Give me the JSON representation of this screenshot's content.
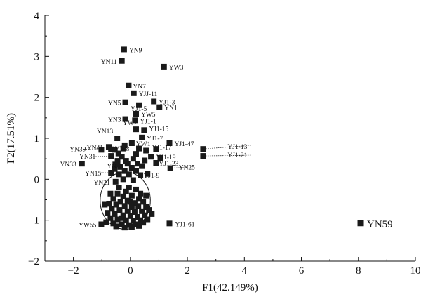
{
  "chart_data": {
    "type": "scatter",
    "xlabel": "F1(42.149%)",
    "ylabel": "F2(17.51%)",
    "xlim": [
      -3,
      10
    ],
    "ylim": [
      -2,
      4
    ],
    "xticks": [
      -2,
      0,
      2,
      4,
      6,
      8,
      10
    ],
    "yticks": [
      -2,
      -1,
      0,
      1,
      2,
      3,
      4
    ],
    "xtick_labels": [
      "−2",
      "0",
      "2",
      "4",
      "6",
      "8",
      "10"
    ],
    "ytick_labels": [
      "−2",
      "−1",
      "0",
      "1",
      "2",
      "3",
      "4"
    ],
    "grid": false,
    "legend": "none",
    "marker": "filled-square",
    "marker_color": "#1a1a1a",
    "cluster_ellipse": {
      "center": [
        -0.18,
        -0.52
      ],
      "radii": [
        0.88,
        0.7
      ]
    },
    "labeled_points": [
      {
        "label": "YN9",
        "x": -0.22,
        "y": 3.17
      },
      {
        "label": "YN11",
        "x": -0.3,
        "y": 2.89
      },
      {
        "label": "YW3",
        "x": 1.18,
        "y": 2.75
      },
      {
        "label": "YN7",
        "x": -0.06,
        "y": 2.29
      },
      {
        "label": "YJJ-11",
        "x": 0.12,
        "y": 2.1
      },
      {
        "label": "YJ1-3",
        "x": 0.82,
        "y": 1.9
      },
      {
        "label": "YN5",
        "x": -0.18,
        "y": 1.88
      },
      {
        "label": "YN1",
        "x": 1.02,
        "y": 1.76
      },
      {
        "label": "YJ1-5",
        "x": 0.3,
        "y": 1.81
      },
      {
        "label": "YW5",
        "x": 0.2,
        "y": 1.6
      },
      {
        "label": "YN3",
        "x": -0.18,
        "y": 1.47
      },
      {
        "label": "YJ1-1",
        "x": 0.16,
        "y": 1.44
      },
      {
        "label": "YW7",
        "x": 0.2,
        "y": 1.22
      },
      {
        "label": "YJ1-15",
        "x": 0.48,
        "y": 1.2
      },
      {
        "label": "YN13",
        "x": -0.46,
        "y": 1.0
      },
      {
        "label": "YJ1-7",
        "x": 0.4,
        "y": 1.02
      },
      {
        "label": "YN41",
        "x": -0.76,
        "y": 0.79
      },
      {
        "label": "YW8",
        "x": -0.2,
        "y": 0.83
      },
      {
        "label": "YJ1-47",
        "x": 1.37,
        "y": 0.88
      },
      {
        "label": "YW1",
        "x": 0.05,
        "y": 0.88
      },
      {
        "label": "YN39",
        "x": -1.02,
        "y": 0.72
      },
      {
        "label": "YJ1-17",
        "x": 0.9,
        "y": 0.74
      },
      {
        "label": "YJ1-13",
        "x": 2.55,
        "y": 0.74
      },
      {
        "label": "YN31",
        "x": -0.68,
        "y": 0.57
      },
      {
        "label": "YJ1-21",
        "x": 2.55,
        "y": 0.57
      },
      {
        "label": "YJ1-19",
        "x": 1.05,
        "y": 0.52
      },
      {
        "label": "YN33",
        "x": -1.7,
        "y": 0.38
      },
      {
        "label": "YN35",
        "x": -0.53,
        "y": 0.36
      },
      {
        "label": "YJ1-23",
        "x": 0.9,
        "y": 0.4
      },
      {
        "label": "YN15",
        "x": -0.68,
        "y": 0.16
      },
      {
        "label": "YN25",
        "x": 1.4,
        "y": 0.27
      },
      {
        "label": "YJ1-9",
        "x": 0.6,
        "y": 0.13
      },
      {
        "label": "YN21",
        "x": -0.52,
        "y": -0.06
      },
      {
        "label": "YJ1-61",
        "x": 1.37,
        "y": -1.08
      },
      {
        "label": "YW55",
        "x": -1.02,
        "y": -1.1
      },
      {
        "label": "YN59",
        "x": 8.08,
        "y": -1.07
      }
    ],
    "other_points": [
      [
        -0.68,
        0.73
      ],
      [
        -0.55,
        0.72
      ],
      [
        -0.42,
        0.63
      ],
      [
        -0.25,
        0.75
      ],
      [
        0.3,
        0.75
      ],
      [
        0.55,
        0.7
      ],
      [
        0.2,
        0.62
      ],
      [
        -0.3,
        0.55
      ],
      [
        0.1,
        0.5
      ],
      [
        -0.15,
        0.45
      ],
      [
        -0.45,
        0.45
      ],
      [
        0.5,
        0.46
      ],
      [
        0.72,
        0.55
      ],
      [
        -0.1,
        0.38
      ],
      [
        0.25,
        0.38
      ],
      [
        -0.35,
        0.3
      ],
      [
        0.05,
        0.28
      ],
      [
        0.4,
        0.32
      ],
      [
        -0.55,
        0.25
      ],
      [
        -0.2,
        0.2
      ],
      [
        0.2,
        0.2
      ],
      [
        -0.05,
        0.12
      ],
      [
        0.35,
        0.1
      ],
      [
        -0.4,
        0.12
      ],
      [
        -0.25,
        0.0
      ],
      [
        0.1,
        -0.02
      ],
      [
        -0.05,
        -0.2
      ],
      [
        0.2,
        -0.25
      ],
      [
        -0.15,
        -0.3
      ],
      [
        0.35,
        -0.35
      ],
      [
        -0.45,
        -0.35
      ],
      [
        -0.25,
        -0.42
      ],
      [
        0.05,
        -0.4
      ],
      [
        0.3,
        -0.48
      ],
      [
        -0.6,
        -0.48
      ],
      [
        -0.35,
        -0.55
      ],
      [
        -0.1,
        -0.52
      ],
      [
        0.15,
        -0.58
      ],
      [
        0.45,
        -0.55
      ],
      [
        -0.75,
        -0.6
      ],
      [
        -0.5,
        -0.62
      ],
      [
        -0.2,
        -0.65
      ],
      [
        0.05,
        -0.68
      ],
      [
        0.28,
        -0.65
      ],
      [
        0.55,
        -0.68
      ],
      [
        -0.9,
        -0.62
      ],
      [
        -0.65,
        -0.72
      ],
      [
        -0.38,
        -0.75
      ],
      [
        -0.1,
        -0.78
      ],
      [
        0.15,
        -0.8
      ],
      [
        0.4,
        -0.78
      ],
      [
        0.65,
        -0.75
      ],
      [
        -0.8,
        -0.82
      ],
      [
        -0.55,
        -0.85
      ],
      [
        -0.25,
        -0.88
      ],
      [
        0.0,
        -0.9
      ],
      [
        0.25,
        -0.92
      ],
      [
        0.5,
        -0.88
      ],
      [
        -0.7,
        -0.95
      ],
      [
        -0.45,
        -0.98
      ],
      [
        -0.15,
        -1.0
      ],
      [
        0.1,
        -1.02
      ],
      [
        0.35,
        -1.0
      ],
      [
        0.6,
        -0.98
      ],
      [
        -0.85,
        -1.05
      ],
      [
        -0.6,
        -1.08
      ],
      [
        -0.3,
        -1.1
      ],
      [
        -0.05,
        -1.12
      ],
      [
        0.2,
        -1.1
      ],
      [
        0.45,
        -1.06
      ],
      [
        -0.5,
        -1.15
      ],
      [
        -0.2,
        -1.18
      ],
      [
        0.05,
        -1.16
      ],
      [
        0.3,
        -1.14
      ],
      [
        -0.4,
        -0.2
      ],
      [
        0.0,
        -0.55
      ],
      [
        -0.3,
        -0.95
      ],
      [
        0.55,
        -0.4
      ],
      [
        -0.7,
        -0.35
      ],
      [
        0.75,
        -0.85
      ]
    ]
  }
}
